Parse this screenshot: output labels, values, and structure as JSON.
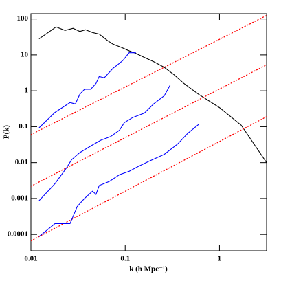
{
  "chart_data": {
    "type": "line",
    "x_label": "k (h Mpc⁻¹)",
    "y_label": "P(k)",
    "xscale": "log",
    "yscale": "log",
    "xlim": [
      0.01,
      3.16
    ],
    "ylim": [
      3.5e-05,
      140
    ],
    "xticks": [
      0.01,
      0.1,
      1
    ],
    "yticks": [
      100,
      10,
      1,
      0.1,
      0.01,
      0.001,
      0.0001
    ],
    "series": [
      {
        "color": "#000000",
        "dashed": false,
        "x": [
          0.0122,
          0.0185,
          0.023,
          0.028,
          0.033,
          0.038,
          0.045,
          0.053,
          0.065,
          0.074,
          0.092,
          0.11,
          0.13,
          0.16,
          0.2,
          0.26,
          0.33,
          0.42,
          0.6,
          1.0,
          1.7,
          3.16
        ],
        "values": [
          28,
          60,
          48,
          55,
          45,
          50,
          42,
          38,
          25,
          20,
          16,
          13,
          11,
          8.5,
          6.5,
          4.5,
          2.8,
          1.6,
          0.8,
          0.34,
          0.11,
          0.01
        ]
      },
      {
        "color": "#ff0000",
        "dashed": true,
        "x": [
          0.01,
          3.16
        ],
        "values": [
          0.06,
          125
        ]
      },
      {
        "color": "#ff0000",
        "dashed": true,
        "x": [
          0.01,
          3.16
        ],
        "values": [
          0.0022,
          5.3
        ]
      },
      {
        "color": "#ff0000",
        "dashed": true,
        "x": [
          0.01,
          3.16
        ],
        "values": [
          6.6e-05,
          0.19
        ]
      },
      {
        "color": "#0000ff",
        "dashed": false,
        "x": [
          0.0122,
          0.018,
          0.026,
          0.0296,
          0.033,
          0.037,
          0.043,
          0.049,
          0.053,
          0.06,
          0.074,
          0.083,
          0.095,
          0.11,
          0.13
        ],
        "values": [
          0.093,
          0.25,
          0.47,
          0.43,
          0.8,
          1.1,
          1.1,
          1.6,
          2.5,
          2.3,
          4.2,
          5.3,
          7.1,
          11.5,
          11.5
        ]
      },
      {
        "color": "#0000ff",
        "dashed": false,
        "x": [
          0.0122,
          0.018,
          0.024,
          0.027,
          0.033,
          0.045,
          0.055,
          0.07,
          0.087,
          0.098,
          0.12,
          0.16,
          0.2,
          0.26,
          0.3
        ],
        "values": [
          0.00087,
          0.0026,
          0.0073,
          0.012,
          0.019,
          0.031,
          0.042,
          0.053,
          0.08,
          0.13,
          0.18,
          0.24,
          0.43,
          0.73,
          1.45
        ]
      },
      {
        "color": "#0000ff",
        "dashed": false,
        "x": [
          0.0122,
          0.018,
          0.026,
          0.031,
          0.037,
          0.045,
          0.049,
          0.053,
          0.068,
          0.087,
          0.11,
          0.14,
          0.18,
          0.26,
          0.36,
          0.46,
          0.6
        ],
        "values": [
          8.7e-05,
          0.0002,
          0.0002,
          0.0006,
          0.001,
          0.0016,
          0.0013,
          0.0023,
          0.003,
          0.0046,
          0.0057,
          0.008,
          0.011,
          0.017,
          0.033,
          0.065,
          0.115
        ]
      }
    ]
  }
}
